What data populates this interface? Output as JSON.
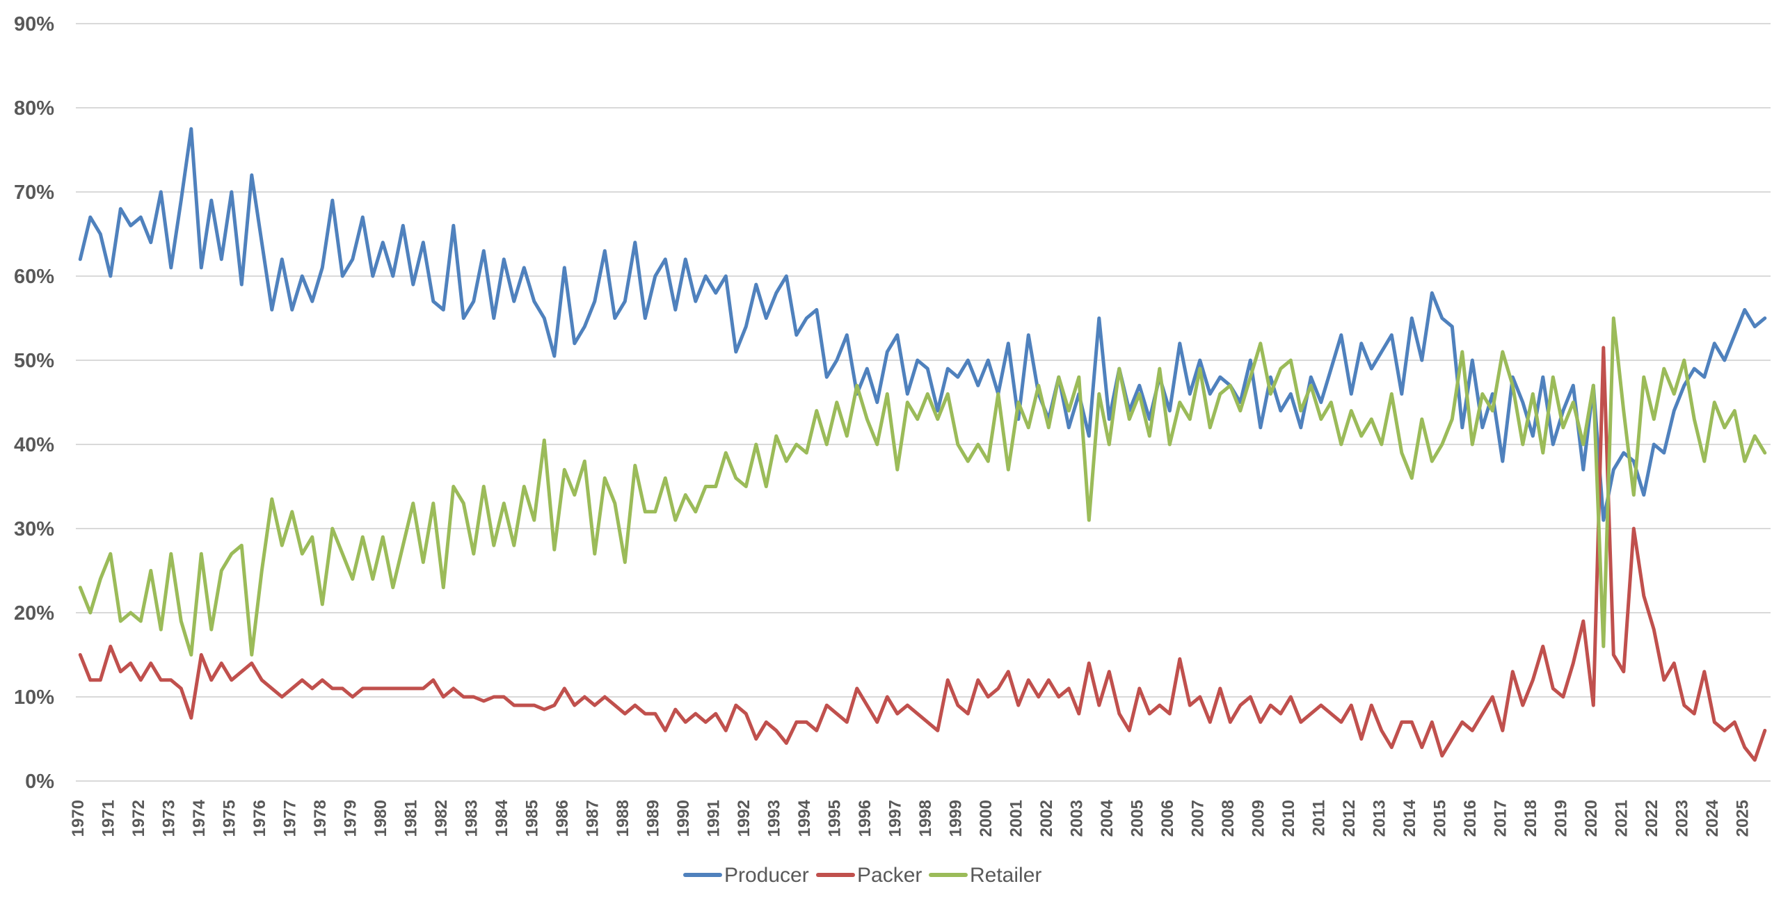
{
  "chart_data": {
    "type": "line",
    "title": "",
    "xlabel": "",
    "ylabel": "",
    "ylim": [
      0,
      90
    ],
    "xlim": [
      1970,
      2025.8
    ],
    "grid": true,
    "legend_position": "bottom",
    "y_ticks": [
      "0%",
      "10%",
      "20%",
      "30%",
      "40%",
      "50%",
      "60%",
      "70%",
      "80%",
      "90%"
    ],
    "x_ticks": [
      "1970",
      "1971",
      "1972",
      "1973",
      "1974",
      "1975",
      "1976",
      "1977",
      "1978",
      "1979",
      "1980",
      "1981",
      "1982",
      "1983",
      "1984",
      "1985",
      "1986",
      "1987",
      "1988",
      "1989",
      "1990",
      "1991",
      "1992",
      "1993",
      "1994",
      "1995",
      "1996",
      "1997",
      "1998",
      "1999",
      "2000",
      "2001",
      "2002",
      "2003",
      "2004",
      "2005",
      "2006",
      "2007",
      "2008",
      "2009",
      "2010",
      "2011",
      "2012",
      "2013",
      "2014",
      "2015",
      "2016",
      "2017",
      "2018",
      "2019",
      "2020",
      "2021",
      "2022",
      "2023",
      "2024",
      "2025"
    ],
    "sampling": "approx. 3 samples per year starting 1970",
    "series": [
      {
        "name": "Producer",
        "color": "#4F81BD",
        "values": [
          62,
          67,
          65,
          60,
          68,
          66,
          67,
          64,
          70,
          61,
          69,
          77.5,
          61,
          69,
          62,
          70,
          59,
          72,
          64,
          56,
          62,
          56,
          60,
          57,
          61,
          69,
          60,
          62,
          67,
          60,
          64,
          60,
          66,
          59,
          64,
          57,
          56,
          66,
          55,
          57,
          63,
          55,
          62,
          57,
          61,
          57,
          55,
          50.5,
          61,
          52,
          54,
          57,
          63,
          55,
          57,
          64,
          55,
          60,
          62,
          56,
          62,
          57,
          60,
          58,
          60,
          51,
          54,
          59,
          55,
          58,
          60,
          53,
          55,
          56,
          48,
          50,
          53,
          46,
          49,
          45,
          51,
          53,
          46,
          50,
          49,
          44,
          49,
          48,
          50,
          47,
          50,
          46,
          52,
          43,
          53,
          46,
          43,
          48,
          42,
          46,
          41,
          55,
          43,
          49,
          44,
          47,
          43,
          48,
          44,
          52,
          46,
          50,
          46,
          48,
          47,
          45,
          50,
          42,
          48,
          44,
          46,
          42,
          48,
          45,
          49,
          53,
          46,
          52,
          49,
          51,
          53,
          46,
          55,
          50,
          58,
          55,
          54,
          42,
          50,
          42,
          46,
          38,
          48,
          45,
          41,
          48,
          40,
          44,
          47,
          37,
          47,
          31,
          37,
          39,
          38,
          34,
          40,
          39,
          44,
          47,
          49,
          48,
          52,
          50,
          53,
          56,
          54,
          55
        ]
      },
      {
        "name": "Packer",
        "color": "#C0504D",
        "values": [
          15,
          12,
          12,
          16,
          13,
          14,
          12,
          14,
          12,
          12,
          11,
          7.5,
          15,
          12,
          14,
          12,
          13,
          14,
          12,
          11,
          10,
          11,
          12,
          11,
          12,
          11,
          11,
          10,
          11,
          11,
          11,
          11,
          11,
          11,
          11,
          12,
          10,
          11,
          10,
          10,
          9.5,
          10,
          10,
          9,
          9,
          9,
          8.5,
          9,
          11,
          9,
          10,
          9,
          10,
          9,
          8,
          9,
          8,
          8,
          6,
          8.5,
          7,
          8,
          7,
          8,
          6,
          9,
          8,
          5,
          7,
          6,
          4.5,
          7,
          7,
          6,
          9,
          8,
          7,
          11,
          9,
          7,
          10,
          8,
          9,
          8,
          7,
          6,
          12,
          9,
          8,
          12,
          10,
          11,
          13,
          9,
          12,
          10,
          12,
          10,
          11,
          8,
          14,
          9,
          13,
          8,
          6,
          11,
          8,
          9,
          8,
          14.5,
          9,
          10,
          7,
          11,
          7,
          9,
          10,
          7,
          9,
          8,
          10,
          7,
          8,
          9,
          8,
          7,
          9,
          5,
          9,
          6,
          4,
          7,
          7,
          4,
          7,
          3,
          5,
          7,
          6,
          8,
          10,
          6,
          13,
          9,
          12,
          16,
          11,
          10,
          14,
          19,
          9,
          51.5,
          15,
          13,
          30,
          22,
          18,
          12,
          14,
          9,
          8,
          13,
          7,
          6,
          7,
          4,
          2.5,
          6
        ]
      },
      {
        "name": "Retailer",
        "color": "#9BBB59",
        "values": [
          23,
          20,
          24,
          27,
          19,
          20,
          19,
          25,
          18,
          27,
          19,
          15,
          27,
          18,
          25,
          27,
          28,
          15,
          25,
          33.5,
          28,
          32,
          27,
          29,
          21,
          30,
          27,
          24,
          29,
          24,
          29,
          23,
          28,
          33,
          26,
          33,
          23,
          35,
          33,
          27,
          35,
          28,
          33,
          28,
          35,
          31,
          40.5,
          27.5,
          37,
          34,
          38,
          27,
          36,
          33,
          26,
          37.5,
          32,
          32,
          36,
          31,
          34,
          32,
          35,
          35,
          39,
          36,
          35,
          40,
          35,
          41,
          38,
          40,
          39,
          44,
          40,
          45,
          41,
          47,
          43,
          40,
          46,
          37,
          45,
          43,
          46,
          43,
          46,
          40,
          38,
          40,
          38,
          46,
          37,
          45,
          42,
          47,
          42,
          48,
          44,
          48,
          31,
          46,
          40,
          49,
          43,
          46,
          41,
          49,
          40,
          45,
          43,
          49,
          42,
          46,
          47,
          44,
          48,
          52,
          46,
          49,
          50,
          44,
          47,
          43,
          45,
          40,
          44,
          41,
          43,
          40,
          46,
          39,
          36,
          43,
          38,
          40,
          43,
          51,
          40,
          46,
          44,
          51,
          47,
          40,
          46,
          39,
          48,
          42,
          45,
          40,
          47,
          16,
          55,
          44,
          34,
          48,
          43,
          49,
          46,
          50,
          43,
          38,
          45,
          42,
          44,
          38,
          41,
          39
        ]
      }
    ]
  }
}
